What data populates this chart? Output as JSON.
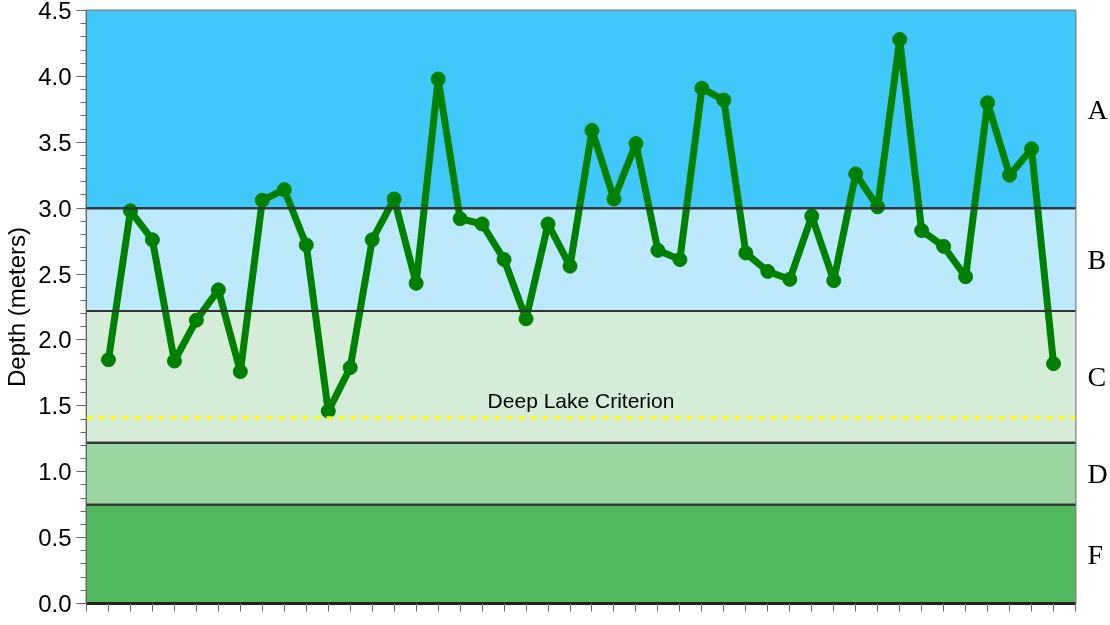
{
  "chart_data": {
    "type": "line",
    "ylabel": "Depth (meters)",
    "categories": [
      null,
      null,
      null,
      null,
      null,
      null,
      null,
      null,
      null,
      null,
      null,
      null,
      null,
      null,
      null,
      null,
      null,
      null,
      null,
      null,
      null,
      null,
      null,
      null,
      null,
      null,
      null,
      null,
      null,
      null,
      null,
      null,
      null,
      null,
      null,
      null,
      null,
      null,
      null,
      null,
      null,
      null,
      null,
      null
    ],
    "series": [
      {
        "color": "#008000",
        "values": [
          1.85,
          2.98,
          2.76,
          1.84,
          2.15,
          2.38,
          1.76,
          3.06,
          3.14,
          2.72,
          1.46,
          1.79,
          2.76,
          3.07,
          2.43,
          3.98,
          2.92,
          2.88,
          2.61,
          2.16,
          2.88,
          2.56,
          3.59,
          3.07,
          3.49,
          2.68,
          2.61,
          3.91,
          3.82,
          2.66,
          2.52,
          2.46,
          2.94,
          2.45,
          3.26,
          3.01,
          4.28,
          2.83,
          2.71,
          2.48,
          3.8,
          3.25,
          3.45,
          1.82
        ]
      }
    ],
    "ylim": [
      0,
      4.5
    ],
    "yticks": [
      {
        "value": 0,
        "label": "0.0"
      },
      {
        "value": 0.1,
        "label": null
      },
      {
        "value": 0.2,
        "label": null
      },
      {
        "value": 0.3,
        "label": null
      },
      {
        "value": 0.4,
        "label": null
      },
      0.5,
      {
        "value": 0.6,
        "label": null
      },
      {
        "value": 0.7,
        "label": null
      },
      {
        "value": 0.8,
        "label": null
      },
      {
        "value": 0.9,
        "label": null
      },
      {
        "value": 1,
        "label": "1.0"
      },
      {
        "value": 1.1,
        "label": null
      },
      {
        "value": 1.2,
        "label": null
      },
      {
        "value": 1.3,
        "label": null
      },
      {
        "value": 1.4,
        "label": null
      },
      1.5,
      {
        "value": 1.6,
        "label": null
      },
      {
        "value": 1.7,
        "label": null
      },
      {
        "value": 1.8,
        "label": null
      },
      {
        "value": 1.9,
        "label": null
      },
      {
        "value": 2,
        "label": "2.0"
      },
      {
        "value": 2.1,
        "label": null
      },
      {
        "value": 2.2,
        "label": null
      },
      {
        "value": 2.3,
        "label": null
      },
      {
        "value": 2.4,
        "label": null
      },
      2.5,
      {
        "value": 2.6,
        "label": null
      },
      {
        "value": 2.7,
        "label": null
      },
      {
        "value": 2.8,
        "label": null
      },
      {
        "value": 2.9,
        "label": null
      },
      {
        "value": 3,
        "label": "3.0"
      },
      {
        "value": 3.1,
        "label": null
      },
      {
        "value": 3.2,
        "label": null
      },
      {
        "value": 3.3,
        "label": null
      },
      {
        "value": 3.4,
        "label": null
      },
      3.5,
      {
        "value": 3.6,
        "label": null
      },
      {
        "value": 3.7,
        "label": null
      },
      {
        "value": 3.8,
        "label": null
      },
      {
        "value": 3.9,
        "label": null
      },
      {
        "value": 4,
        "label": "4.0"
      },
      {
        "value": 4.1,
        "label": null
      },
      {
        "value": 4.2,
        "label": null
      },
      {
        "value": 4.3,
        "label": null
      },
      {
        "value": 4.4,
        "label": null
      },
      4.5
    ],
    "bands": [
      {
        "axis": "y",
        "from": 3.0,
        "to": 4.5,
        "label": "A",
        "color": "#40c8fa"
      },
      {
        "axis": "y",
        "from": 2.22,
        "to": 3.0,
        "label": "B",
        "color": "#bce9fc"
      },
      {
        "axis": "y",
        "from": 1.22,
        "to": 2.22,
        "label": "C",
        "color": "#d5ecd8"
      },
      {
        "axis": "y",
        "from": 0.75,
        "to": 1.22,
        "label": "D",
        "color": "#99d6a1"
      },
      {
        "axis": "y",
        "from": 0,
        "to": 0.75,
        "label": "F",
        "color": "#52b960"
      }
    ],
    "ref_lines": [
      {
        "axis": "y",
        "value": 1.41,
        "label": "Deep Lake Criterion",
        "color": "#ffff00",
        "line_style": "dashed"
      }
    ],
    "marker": "circle",
    "line_style": "solid",
    "tick_labels": "y"
  }
}
